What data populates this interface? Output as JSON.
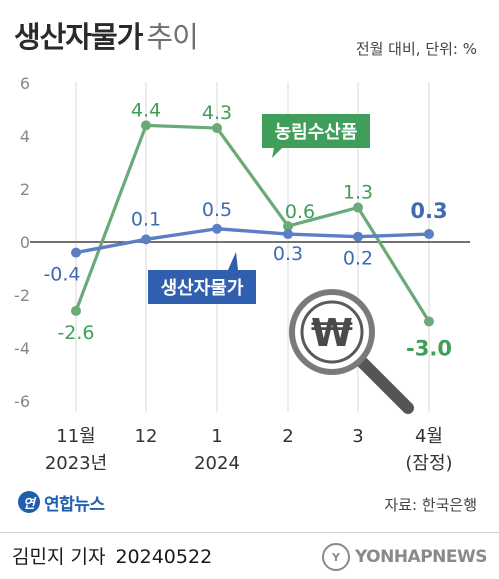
{
  "header": {
    "title_bold": "생산자물가",
    "title_light": "추이",
    "unit": "전월 대비, 단위: %"
  },
  "chart_data": {
    "type": "line",
    "categories": [
      "11월\n2023년",
      "12",
      "1\n2024",
      "2",
      "3",
      "4월\n(잠정)"
    ],
    "ylim": [
      -6,
      6
    ],
    "yticks": [
      6,
      4,
      2,
      0,
      -2,
      -4,
      -6
    ],
    "grid": "vertical",
    "series": [
      {
        "name": "농림수산품",
        "values": [
          -2.6,
          4.4,
          4.3,
          0.6,
          1.3,
          -3.0
        ],
        "labels": [
          "-2.6",
          "4.4",
          "4.3",
          "0.6",
          "1.3",
          "-3.0"
        ],
        "color": "#6aaa78",
        "label_color": "#3f9e5a"
      },
      {
        "name": "생산자물가",
        "values": [
          -0.4,
          0.1,
          0.5,
          0.3,
          0.2,
          0.3
        ],
        "labels": [
          "-0.4",
          "0.1",
          "0.5",
          "0.3",
          "0.2",
          "0.3"
        ],
        "color": "#5b7ec4",
        "label_color": "#3f6bb3"
      }
    ]
  },
  "branding": {
    "logo_mark": "연",
    "logo_text": "연합뉴스",
    "source": "자료: 한국은행",
    "reporter": "김민지 기자",
    "date": "20240522",
    "agency": "YONHAPNEWS"
  },
  "icons": {
    "magnifier": "won-magnifier-icon",
    "won_symbol": "₩"
  }
}
